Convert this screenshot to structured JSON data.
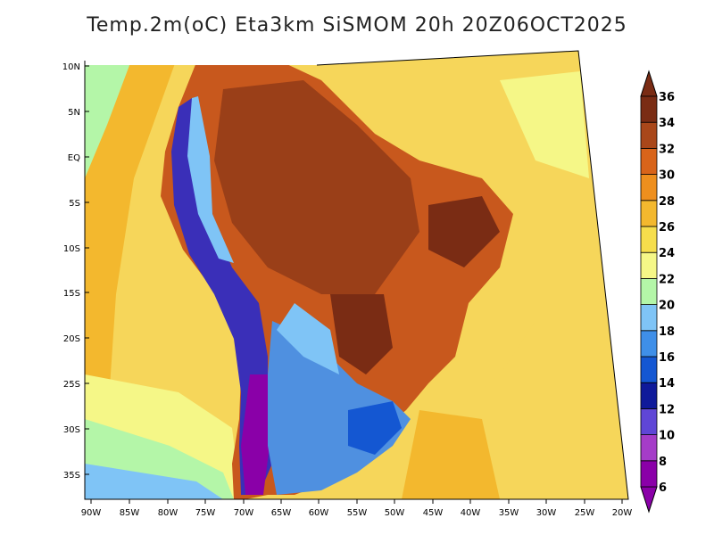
{
  "title": "Temp.2m(oC) Eta3km SiSMOM 20h 20Z06OCT2025",
  "lat_labels": [
    "10N",
    "5N",
    "EQ",
    "5S",
    "10S",
    "15S",
    "20S",
    "25S",
    "30S",
    "35S"
  ],
  "lon_labels": [
    "90W",
    "85W",
    "80W",
    "75W",
    "70W",
    "65W",
    "60W",
    "55W",
    "50W",
    "45W",
    "40W",
    "35W",
    "30W",
    "25W",
    "20W"
  ],
  "colorbar": {
    "levels": [
      "6",
      "8",
      "10",
      "12",
      "14",
      "16",
      "18",
      "20",
      "22",
      "24",
      "26",
      "28",
      "30",
      "32",
      "34",
      "36"
    ],
    "colors": [
      "#8a00a8",
      "#a53cc8",
      "#5f46d6",
      "#0f1a9a",
      "#1457d2",
      "#3f8fe8",
      "#7fc4f6",
      "#b4f6a8",
      "#f5f787",
      "#f6de4c",
      "#f3b82e",
      "#ee8f1e",
      "#d8641a",
      "#a9471a",
      "#7a2c14"
    ]
  },
  "fill_colors": {
    "ocean_warm": "#f6d65a",
    "ocean_mid": "#f3b82e",
    "ocean_cool": "#f5f787",
    "land_hot": "#c8581d",
    "land_very_hot": "#9a3f18",
    "andes_cold": "#3a2fb8",
    "south_cool": "#4f90e0"
  }
}
